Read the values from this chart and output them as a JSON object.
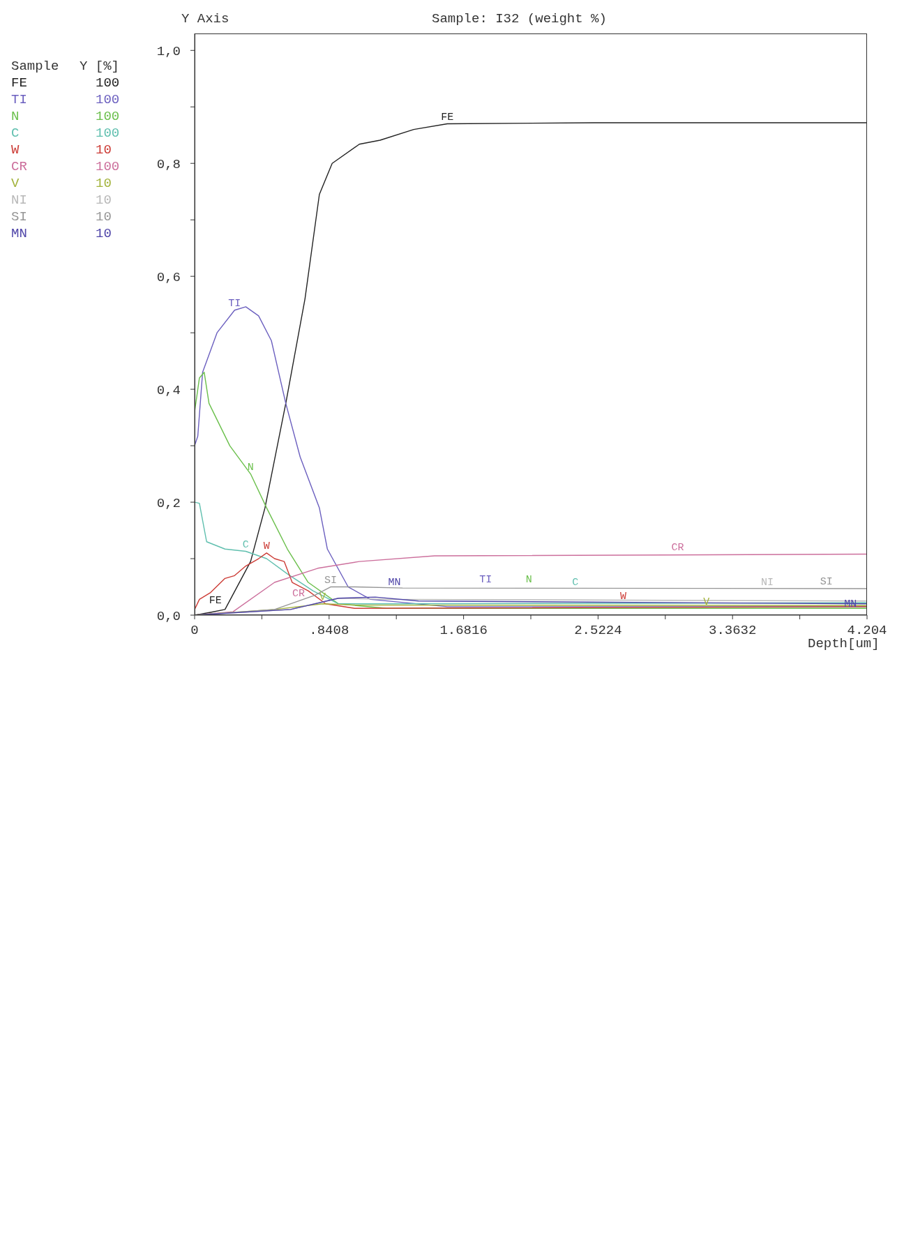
{
  "chart_data": {
    "type": "line",
    "title": "Sample: I32 (weight %)",
    "xlabel": "Depth[um]",
    "ylabel": "Y Axis",
    "legend_title": "Sample",
    "legend": "left",
    "grid": false,
    "xlim": [
      0,
      4.204
    ],
    "ylim": [
      0,
      1.03
    ],
    "xticks": [
      0,
      {
        "value": 0.4204,
        "label": null
      },
      {
        "value": 0.8408,
        "label": ".8408"
      },
      {
        "value": 1.2612,
        "label": null
      },
      1.6816,
      {
        "value": 2.102,
        "label": null
      },
      2.5224,
      {
        "value": 2.9428,
        "label": null
      },
      3.3632,
      {
        "value": 3.7836,
        "label": null
      },
      4.204
    ],
    "yticks": [
      {
        "value": 0,
        "label": "0,0"
      },
      {
        "value": 0.1,
        "label": null
      },
      {
        "value": 0.2,
        "label": "0,2"
      },
      {
        "value": 0.3,
        "label": null
      },
      {
        "value": 0.4,
        "label": "0,4"
      },
      {
        "value": 0.5,
        "label": null
      },
      {
        "value": 0.6,
        "label": "0,6"
      },
      {
        "value": 0.7,
        "label": null
      },
      {
        "value": 0.8,
        "label": "0,8"
      },
      {
        "value": 0.9,
        "label": null
      },
      {
        "value": 1.0,
        "label": "1,0"
      }
    ],
    "series": [
      {
        "name": "FE",
        "color": "#222222",
        "x": [
          0,
          0.1,
          0.19,
          0.35,
          0.44,
          0.57,
          0.69,
          0.78,
          0.86,
          1.03,
          1.16,
          1.37,
          1.58,
          2.5,
          4.204
        ],
        "values": [
          0,
          0.005,
          0.01,
          0.095,
          0.19,
          0.375,
          0.56,
          0.745,
          0.8,
          0.834,
          0.841,
          0.86,
          0.87,
          0.872,
          0.872
        ]
      },
      {
        "name": "TI",
        "color": "#6b5fbf",
        "x": [
          0,
          0.02,
          0.05,
          0.14,
          0.25,
          0.32,
          0.4,
          0.48,
          0.57,
          0.66,
          0.78,
          0.83,
          0.96,
          1.1,
          1.58,
          4.204
        ],
        "values": [
          0.3,
          0.317,
          0.43,
          0.5,
          0.54,
          0.546,
          0.53,
          0.486,
          0.375,
          0.28,
          0.19,
          0.117,
          0.05,
          0.028,
          0.015,
          0.015
        ]
      },
      {
        "name": "N",
        "color": "#6abf4b",
        "x": [
          0,
          0.03,
          0.06,
          0.09,
          0.22,
          0.35,
          0.45,
          0.58,
          0.71,
          0.9,
          1.2,
          4.204
        ],
        "values": [
          0.36,
          0.42,
          0.43,
          0.375,
          0.3,
          0.25,
          0.19,
          0.117,
          0.058,
          0.02,
          0.012,
          0.012
        ]
      },
      {
        "name": "C",
        "color": "#5fbfae",
        "x": [
          0,
          0.03,
          0.075,
          0.19,
          0.32,
          0.45,
          0.58,
          0.74,
          0.9,
          1.2,
          4.204
        ],
        "values": [
          0.2,
          0.198,
          0.13,
          0.117,
          0.113,
          0.1,
          0.073,
          0.043,
          0.02,
          0.02,
          0.022
        ]
      },
      {
        "name": "W",
        "color": "#cc3b35",
        "x": [
          0,
          0.03,
          0.1,
          0.19,
          0.25,
          0.32,
          0.4,
          0.45,
          0.5,
          0.56,
          0.61,
          0.71,
          0.82,
          1.0,
          4.204
        ],
        "values": [
          0.01,
          0.028,
          0.04,
          0.065,
          0.07,
          0.087,
          0.1,
          0.11,
          0.1,
          0.095,
          0.058,
          0.043,
          0.02,
          0.012,
          0.015
        ]
      },
      {
        "name": "CR",
        "color": "#cc6f9c",
        "x": [
          0,
          0.24,
          0.5,
          0.77,
          1.03,
          1.5,
          4.204
        ],
        "values": [
          0,
          0.006,
          0.058,
          0.083,
          0.095,
          0.105,
          0.108
        ]
      },
      {
        "name": "V",
        "color": "#a3b33c",
        "x": [
          0,
          0.5,
          0.8,
          1.0,
          4.204
        ],
        "values": [
          0,
          0.01,
          0.02,
          0.018,
          0.017
        ]
      },
      {
        "name": "NI",
        "color": "#b8b8b8",
        "x": [
          0,
          0.6,
          0.9,
          1.2,
          4.204
        ],
        "values": [
          0,
          0.01,
          0.03,
          0.028,
          0.025
        ]
      },
      {
        "name": "SI",
        "color": "#969696",
        "x": [
          0,
          0.5,
          0.75,
          0.85,
          1.0,
          1.3,
          4.204
        ],
        "values": [
          0,
          0.01,
          0.035,
          0.05,
          0.05,
          0.048,
          0.047
        ]
      },
      {
        "name": "MN",
        "color": "#4f45a8",
        "x": [
          0,
          0.6,
          0.9,
          1.13,
          1.4,
          4.204
        ],
        "values": [
          0,
          0.01,
          0.03,
          0.032,
          0.025,
          0.02
        ]
      }
    ],
    "annotations": [
      "Y [%]",
      "100",
      "100",
      "100",
      "100",
      "10",
      "100",
      "10",
      "10",
      "10",
      "10",
      {
        "text": "FE",
        "x": 1.58,
        "y": 0.87
      },
      {
        "text": "TI",
        "x": 0.25,
        "y": 0.54
      },
      {
        "text": "N",
        "x": 0.35,
        "y": 0.25
      },
      {
        "text": "C",
        "x": 0.32,
        "y": 0.113
      },
      {
        "text": "W",
        "x": 0.45,
        "y": 0.11
      },
      {
        "text": "CR",
        "x": 0.65,
        "y": 0.026
      },
      {
        "text": "V",
        "x": 0.8,
        "y": 0.02
      },
      {
        "text": "SI",
        "x": 0.85,
        "y": 0.05
      },
      {
        "text": "MN",
        "x": 1.25,
        "y": 0.046
      },
      {
        "text": "FE",
        "x": 0.13,
        "y": 0.013
      },
      {
        "text": "TI",
        "x": 1.82,
        "y": 0.051
      },
      {
        "text": "N",
        "x": 2.09,
        "y": 0.051
      },
      {
        "text": "C",
        "x": 2.38,
        "y": 0.046
      },
      {
        "text": "W",
        "x": 2.68,
        "y": 0.021
      },
      {
        "text": "CR",
        "x": 3.02,
        "y": 0.107
      },
      {
        "text": "V",
        "x": 3.2,
        "y": 0.011
      },
      {
        "text": "NI",
        "x": 3.58,
        "y": 0.046
      },
      {
        "text": "SI",
        "x": 3.95,
        "y": 0.047
      },
      {
        "text": "MN",
        "x": 4.1,
        "y": 0.008
      }
    ]
  }
}
